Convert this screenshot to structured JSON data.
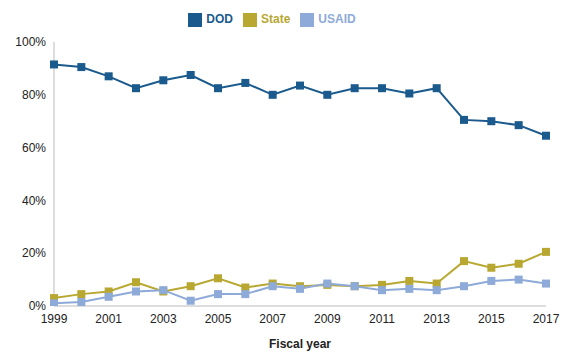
{
  "chart_data": {
    "type": "line",
    "x_label": "Fiscal year",
    "x": [
      1999,
      2000,
      2001,
      2002,
      2003,
      2004,
      2005,
      2006,
      2007,
      2008,
      2009,
      2010,
      2011,
      2012,
      2013,
      2014,
      2015,
      2016,
      2017
    ],
    "xlim": [
      1999,
      2017
    ],
    "xticks": [
      1999,
      2001,
      2003,
      2005,
      2007,
      2009,
      2011,
      2013,
      2015,
      2017
    ],
    "ylim": [
      0,
      100
    ],
    "yticks": [
      {
        "value": 0,
        "label": "0%"
      },
      {
        "value": 20,
        "label": "20%"
      },
      {
        "value": 40,
        "label": "40%"
      },
      {
        "value": 60,
        "label": "60%"
      },
      {
        "value": 80,
        "label": "80%"
      },
      {
        "value": 100,
        "label": "100%"
      }
    ],
    "grid": false,
    "legend": "top",
    "marker": "square",
    "series": [
      {
        "name": "DOD",
        "color": "#1b5a8c",
        "values": [
          91.5,
          90.5,
          87,
          82.5,
          85.5,
          87.5,
          82.5,
          84.5,
          80,
          83.5,
          80,
          82.5,
          82.5,
          80.5,
          82.5,
          70.5,
          70,
          68.5,
          64.5
        ]
      },
      {
        "name": "State",
        "color": "#b8a832",
        "values": [
          3,
          4.5,
          5.5,
          9,
          5.5,
          7.5,
          10.5,
          7,
          8.5,
          7.5,
          8,
          7.5,
          8,
          9.5,
          8.5,
          17,
          14.5,
          16,
          20.5
        ]
      },
      {
        "name": "USAID",
        "color": "#8eaad8",
        "values": [
          1,
          1.5,
          3.5,
          5.5,
          6,
          2,
          4.5,
          4.5,
          7.5,
          6.5,
          8.5,
          7.5,
          6,
          6.5,
          6,
          7.5,
          9.5,
          10,
          8.5
        ]
      }
    ]
  }
}
